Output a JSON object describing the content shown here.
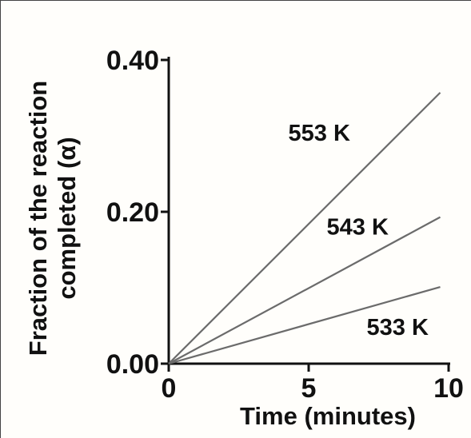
{
  "chart_data": {
    "type": "line",
    "xlabel": "Time (minutes)",
    "ylabel_lines": [
      "Fraction of the reaction",
      "completed (α)"
    ],
    "xlim": [
      0,
      10
    ],
    "ylim": [
      0,
      0.4
    ],
    "x_ticks": [
      0,
      5,
      10
    ],
    "x_tick_labels": [
      "0",
      "5",
      "10"
    ],
    "y_ticks": [
      0,
      0.2,
      0.4
    ],
    "y_tick_labels": [
      "0.00",
      "0.20",
      "0.40"
    ],
    "grid": false,
    "line_color": "#6b6b6b",
    "series": [
      {
        "name": "553 K",
        "x": [
          0,
          9.7
        ],
        "y": [
          0,
          0.357
        ]
      },
      {
        "name": "543 K",
        "x": [
          0,
          9.7
        ],
        "y": [
          0,
          0.193
        ]
      },
      {
        "name": "533 K",
        "x": [
          0,
          9.7
        ],
        "y": [
          0,
          0.101
        ]
      }
    ]
  }
}
